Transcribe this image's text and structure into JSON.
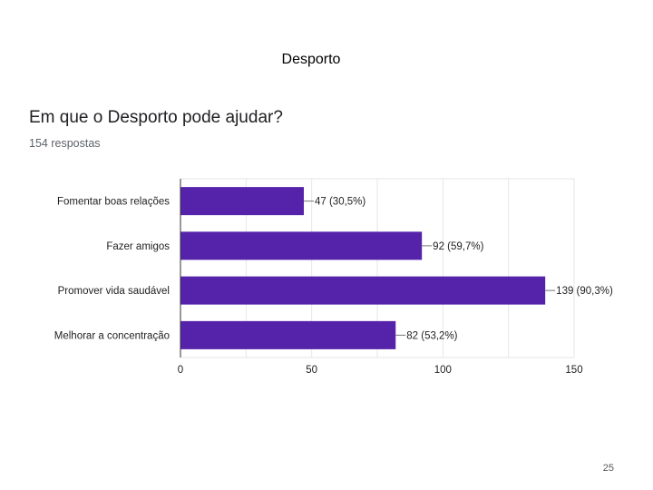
{
  "slide": {
    "title": "Desporto",
    "page_number": "25"
  },
  "form": {
    "question": "Em que o Desporto pode ajudar?",
    "responses": "154 respostas"
  },
  "colors": {
    "bar": "#5522aa",
    "grid": "#e6e6e6",
    "axis": "#333333"
  },
  "chart_data": {
    "type": "bar",
    "orientation": "horizontal",
    "title": "Em que o Desporto pode ajudar?",
    "categories": [
      "Fomentar boas relações",
      "Fazer amigos",
      "Promover vida saudável",
      "Melhorar a concentração"
    ],
    "values": [
      47,
      92,
      139,
      82
    ],
    "data_labels": [
      "47 (30,5%)",
      "92 (59,7%)",
      "139 (90,3%)",
      "82 (53,2%)"
    ],
    "xlim": [
      0,
      150
    ],
    "x_ticks": [
      0,
      50,
      100,
      150
    ],
    "grid": true,
    "legend": "none"
  }
}
